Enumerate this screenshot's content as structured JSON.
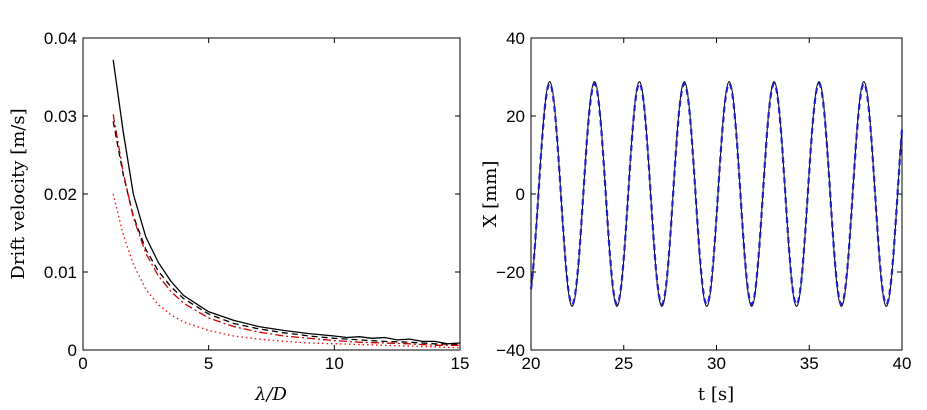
{
  "chart_data": [
    {
      "type": "line",
      "xlabel": "λ/D",
      "ylabel": "Drift velocity [m/s]",
      "xlim": [
        0,
        15
      ],
      "ylim": [
        0,
        0.04
      ],
      "xticks": [
        "0",
        "5",
        "10",
        "15"
      ],
      "yticks": [
        "0",
        "0.01",
        "0.02",
        "0.03",
        "0.04"
      ],
      "grid": false,
      "series": [
        {
          "style": "solid",
          "color": "#000000",
          "x": [
            1.2,
            1.6,
            2.0,
            2.5,
            3.0,
            3.5,
            4.0,
            5.0,
            6.0,
            7.0,
            8.0,
            9.0,
            10.0,
            10.5,
            11.0,
            11.5,
            12.0,
            12.5,
            13.0,
            13.5,
            14.0,
            14.5,
            15.0
          ],
          "y": [
            0.0372,
            0.028,
            0.02,
            0.0145,
            0.0112,
            0.0088,
            0.007,
            0.0049,
            0.0038,
            0.003,
            0.0025,
            0.0021,
            0.0018,
            0.0016,
            0.0017,
            0.0015,
            0.0016,
            0.0013,
            0.0014,
            0.0011,
            0.0011,
            0.0008,
            0.0009
          ]
        },
        {
          "style": "dashed",
          "color": "#000000",
          "x": [
            1.2,
            1.6,
            2.0,
            2.5,
            3.0,
            3.5,
            4.0,
            5.0,
            6.0,
            7.0,
            8.0,
            9.0,
            10.0,
            11.0,
            12.0,
            13.0,
            14.0,
            15.0
          ],
          "y": [
            0.0293,
            0.0225,
            0.0172,
            0.0129,
            0.0101,
            0.0081,
            0.0066,
            0.0046,
            0.0034,
            0.0027,
            0.0022,
            0.0018,
            0.0015,
            0.0013,
            0.0011,
            0.001,
            0.0008,
            0.0007
          ]
        },
        {
          "style": "dashdot",
          "color": "#cc0000",
          "x": [
            1.2,
            1.6,
            2.0,
            2.5,
            3.0,
            3.5,
            4.0,
            5.0,
            6.0,
            7.0,
            8.0,
            9.0,
            10.0,
            11.0,
            12.0,
            13.0,
            14.0,
            15.0
          ],
          "y": [
            0.0302,
            0.0228,
            0.017,
            0.0124,
            0.0095,
            0.0075,
            0.006,
            0.0041,
            0.003,
            0.0023,
            0.0018,
            0.0015,
            0.0012,
            0.001,
            0.0009,
            0.0008,
            0.0006,
            0.0006
          ]
        },
        {
          "style": "dotted",
          "color": "#ff0000",
          "x": [
            1.2,
            1.6,
            2.0,
            2.5,
            3.0,
            3.5,
            4.0,
            5.0,
            6.0,
            7.0,
            8.0,
            9.0,
            10.0,
            11.0,
            12.0,
            13.0,
            14.0,
            15.0
          ],
          "y": [
            0.02,
            0.0148,
            0.011,
            0.0078,
            0.0058,
            0.0045,
            0.0036,
            0.0025,
            0.0018,
            0.0014,
            0.0011,
            0.0009,
            0.0008,
            0.0007,
            0.0006,
            0.0005,
            0.0004,
            0.0003
          ]
        }
      ]
    },
    {
      "type": "line",
      "xlabel": "t [s]",
      "ylabel": "X [mm]",
      "xlim": [
        20,
        40
      ],
      "ylim": [
        -40,
        40
      ],
      "xticks": [
        "20",
        "25",
        "30",
        "35",
        "40"
      ],
      "yticks": [
        "−40",
        "−20",
        "0",
        "20",
        "40"
      ],
      "grid": false,
      "oscillation": {
        "amplitude": 28.5,
        "period": 2.42,
        "phase_zero_crossing_t": 20.4
      },
      "series": [
        {
          "style": "solid",
          "color": "#000000",
          "amplitude": 28.8
        },
        {
          "style": "dashed",
          "color": "#1f1fcc",
          "amplitude": 28.3
        }
      ]
    }
  ]
}
